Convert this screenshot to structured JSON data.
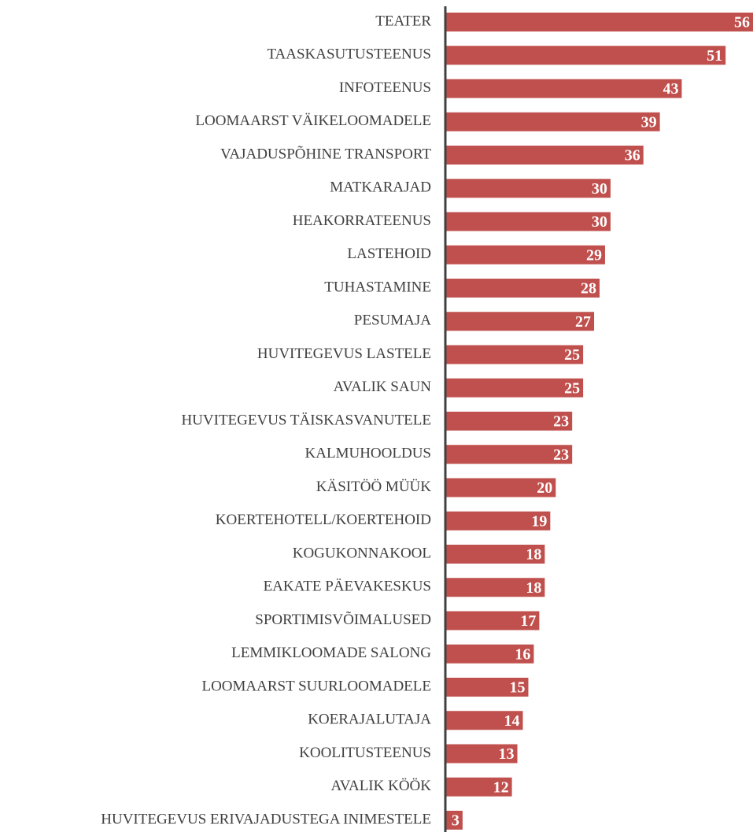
{
  "chart_data": {
    "type": "bar",
    "orientation": "horizontal",
    "categories": [
      "TEATER",
      "TAASKASUTUSTEENUS",
      "INFOTEENUS",
      "LOOMAARST VÄIKELOOMADELE",
      "VAJADUSPÕHINE TRANSPORT",
      "MATKARAJAD",
      "HEAKORRATEENUS",
      "LASTEHOID",
      "TUHASTAMINE",
      "PESUMAJA",
      "HUVITEGEVUS LASTELE",
      "AVALIK SAUN",
      "HUVITEGEVUS TÄISKASVANUTELE",
      "KALMUHOOLDUS",
      "KÄSITÖÖ MÜÜK",
      "KOERTEHOTELL/KOERTEHOID",
      "KOGUKONNAKOOL",
      "EAKATE PÄEVAKESKUS ",
      "SPORTIMISVÕIMALUSED",
      "LEMMIKLOOMADE SALONG",
      "LOOMAARST SUURLOOMADELE",
      "KOERAJALUTAJA",
      "KOOLITUSTEENUS",
      "AVALIK KÖÖK",
      "HUVITEGEVUS ERIVAJADUSTEGA INIMESTELE"
    ],
    "values": [
      56,
      51,
      43,
      39,
      36,
      30,
      30,
      29,
      28,
      27,
      25,
      25,
      23,
      23,
      20,
      19,
      18,
      18,
      17,
      16,
      15,
      14,
      13,
      12,
      3
    ],
    "color": "#c0504d",
    "xlim": [
      0,
      56
    ]
  }
}
